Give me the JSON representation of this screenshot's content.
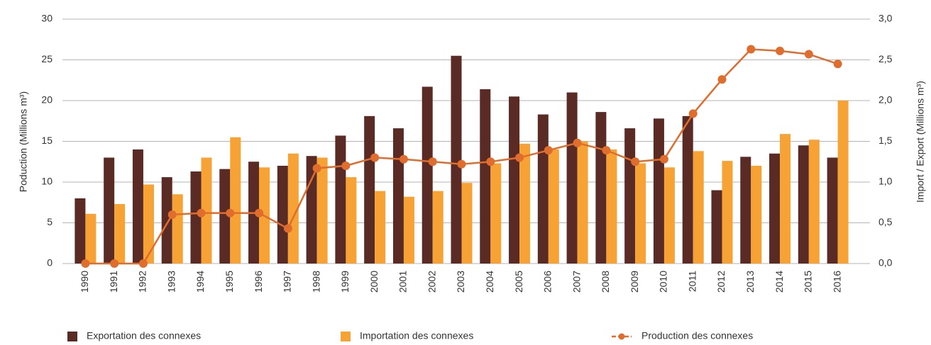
{
  "chart_data": {
    "type": "bar",
    "y_label": "Poduction (Millions m³)",
    "y2_label": "Import / Export (Millions m³)",
    "categories": [
      "1990",
      "1991",
      "1992",
      "1993",
      "1994",
      "1995",
      "1996",
      "1997",
      "1998",
      "1999",
      "2000",
      "2001",
      "2002",
      "2003",
      "2004",
      "2005",
      "2006",
      "2007",
      "2008",
      "2009",
      "2010",
      "2011",
      "2012",
      "2013",
      "2014",
      "2015",
      "2016"
    ],
    "series": [
      {
        "name": "Exportation des connexes",
        "type": "bar",
        "axis": "y2",
        "color": "#5a2a24",
        "values": [
          0.8,
          1.3,
          1.4,
          1.06,
          1.13,
          1.16,
          1.25,
          1.2,
          1.32,
          1.57,
          1.81,
          1.66,
          2.17,
          2.55,
          2.14,
          2.05,
          1.83,
          2.1,
          1.86,
          1.66,
          1.78,
          1.81,
          0.9,
          1.31,
          1.35,
          1.45,
          1.3
        ]
      },
      {
        "name": "Importation des connexes",
        "type": "bar",
        "axis": "y2",
        "color": "#f7a234",
        "values": [
          0.61,
          0.73,
          0.97,
          0.85,
          1.3,
          1.55,
          1.18,
          1.35,
          1.3,
          1.06,
          0.89,
          0.82,
          0.89,
          0.99,
          1.23,
          1.47,
          1.4,
          1.5,
          1.4,
          1.23,
          1.18,
          1.38,
          1.26,
          1.2,
          1.59,
          1.52,
          2.0
        ]
      },
      {
        "name": "Production des connexes",
        "type": "line",
        "axis": "y",
        "color": "#df6d2d",
        "values": [
          0,
          0,
          0,
          6.0,
          6.2,
          6.2,
          6.2,
          4.3,
          11.7,
          12.0,
          13.0,
          12.8,
          12.5,
          12.2,
          12.5,
          13.0,
          13.9,
          14.8,
          13.9,
          12.5,
          12.8,
          18.4,
          22.6,
          26.3,
          26.1,
          25.7,
          24.5
        ]
      }
    ],
    "ylim": [
      0,
      30
    ],
    "yticks": [
      0,
      5,
      10,
      15,
      20,
      25,
      30
    ],
    "y2lim": [
      0,
      3
    ],
    "y2ticks": [
      {
        "value": 0,
        "label": "0,0"
      },
      {
        "value": 0.5,
        "label": "0,5"
      },
      {
        "value": 1,
        "label": "1,0"
      },
      {
        "value": 1.5,
        "label": "1,5"
      },
      {
        "value": 2,
        "label": "2,0"
      },
      {
        "value": 2.5,
        "label": "2,5"
      },
      {
        "value": 3,
        "label": "3,0"
      }
    ],
    "grid": true,
    "legend": "bottom"
  }
}
